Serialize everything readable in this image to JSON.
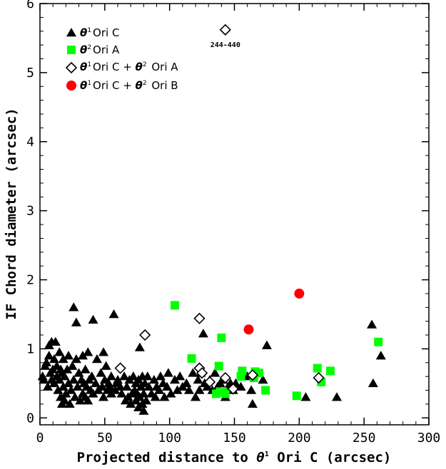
{
  "chart_data": {
    "type": "scatter",
    "xlabel_pre": "Projected distance to ",
    "xlabel_theta": "θ",
    "xlabel_sup": "1",
    "xlabel_post": " Ori C (arcsec)",
    "ylabel": "IF Chord diameter (arcsec)",
    "xlim": [
      0,
      300
    ],
    "ylim": [
      -0.1,
      6
    ],
    "xticks": [
      "0",
      "50",
      "100",
      "150",
      "200",
      "250",
      "300"
    ],
    "yticks": [
      "0",
      "1",
      "2",
      "3",
      "4",
      "5",
      "6"
    ],
    "grid": false,
    "legend_position": "top-left",
    "annotation": {
      "text": "244-440",
      "x": 143,
      "y": 5.62
    },
    "series": [
      {
        "name": "Ori C",
        "name_theta": "θ",
        "name_sup": "1",
        "marker": "triangle",
        "color": "#000000",
        "points": [
          [
            2,
            0.6
          ],
          [
            3,
            0.55
          ],
          [
            4,
            0.75
          ],
          [
            5,
            0.8
          ],
          [
            6,
            0.45
          ],
          [
            7,
            0.9
          ],
          [
            7,
            1.05
          ],
          [
            8,
            0.65
          ],
          [
            9,
            0.55
          ],
          [
            9,
            1.1
          ],
          [
            10,
            0.7
          ],
          [
            11,
            0.5
          ],
          [
            11,
            0.85
          ],
          [
            12,
            1.1
          ],
          [
            13,
            0.6
          ],
          [
            13,
            0.75
          ],
          [
            14,
            0.4
          ],
          [
            15,
            0.95
          ],
          [
            15,
            0.55
          ],
          [
            16,
            0.3
          ],
          [
            16,
            0.7
          ],
          [
            17,
            0.2
          ],
          [
            17,
            0.65
          ],
          [
            18,
            0.45
          ],
          [
            18,
            0.85
          ],
          [
            19,
            0.25
          ],
          [
            19,
            0.6
          ],
          [
            20,
            0.35
          ],
          [
            21,
            0.7
          ],
          [
            22,
            0.5
          ],
          [
            22,
            0.9
          ],
          [
            23,
            0.2
          ],
          [
            24,
            0.4
          ],
          [
            25,
            0.75
          ],
          [
            26,
            1.6
          ],
          [
            26,
            0.55
          ],
          [
            27,
            0.3
          ],
          [
            28,
            1.38
          ],
          [
            28,
            0.85
          ],
          [
            29,
            0.45
          ],
          [
            30,
            0.65
          ],
          [
            31,
            0.25
          ],
          [
            32,
            0.55
          ],
          [
            33,
            0.9
          ],
          [
            33,
            0.35
          ],
          [
            34,
            0.5
          ],
          [
            35,
            0.7
          ],
          [
            35,
            0.3
          ],
          [
            36,
            0.45
          ],
          [
            37,
            0.95
          ],
          [
            37,
            0.25
          ],
          [
            38,
            0.55
          ],
          [
            39,
            0.4
          ],
          [
            40,
            0.6
          ],
          [
            41,
            0.35
          ],
          [
            41,
            1.42
          ],
          [
            43,
            0.5
          ],
          [
            44,
            0.85
          ],
          [
            45,
            0.4
          ],
          [
            47,
            0.65
          ],
          [
            48,
            0.45
          ],
          [
            49,
            0.95
          ],
          [
            49,
            0.3
          ],
          [
            50,
            0.55
          ],
          [
            51,
            0.75
          ],
          [
            52,
            0.4
          ],
          [
            53,
            0.5
          ],
          [
            54,
            0.45
          ],
          [
            55,
            0.6
          ],
          [
            55,
            0.35
          ],
          [
            57,
            1.5
          ],
          [
            58,
            0.4
          ],
          [
            59,
            0.5
          ],
          [
            60,
            0.55
          ],
          [
            62,
            0.45
          ],
          [
            63,
            0.35
          ],
          [
            65,
            0.6
          ],
          [
            66,
            0.25
          ],
          [
            67,
            0.45
          ],
          [
            68,
            0.3
          ],
          [
            69,
            0.55
          ],
          [
            70,
            0.2
          ],
          [
            71,
            0.35
          ],
          [
            72,
            0.6
          ],
          [
            73,
            0.4
          ],
          [
            74,
            0.25
          ],
          [
            74,
            0.5
          ],
          [
            75,
            0.35
          ],
          [
            76,
            0.15
          ],
          [
            76,
            0.55
          ],
          [
            77,
            1.02
          ],
          [
            77,
            0.3
          ],
          [
            78,
            0.45
          ],
          [
            79,
            0.2
          ],
          [
            79,
            0.6
          ],
          [
            80,
            0.1
          ],
          [
            80,
            0.35
          ],
          [
            81,
            0.5
          ],
          [
            82,
            0.25
          ],
          [
            83,
            0.6
          ],
          [
            84,
            0.45
          ],
          [
            86,
            0.35
          ],
          [
            88,
            0.55
          ],
          [
            89,
            0.3
          ],
          [
            90,
            0.45
          ],
          [
            92,
            0.4
          ],
          [
            93,
            0.6
          ],
          [
            95,
            0.5
          ],
          [
            96,
            0.3
          ],
          [
            98,
            0.45
          ],
          [
            99,
            0.65
          ],
          [
            101,
            0.35
          ],
          [
            104,
            0.55
          ],
          [
            106,
            0.4
          ],
          [
            108,
            0.6
          ],
          [
            110,
            0.45
          ],
          [
            113,
            0.5
          ],
          [
            115,
            0.4
          ],
          [
            118,
            0.65
          ],
          [
            120,
            0.3
          ],
          [
            122,
            0.55
          ],
          [
            123,
            0.4
          ],
          [
            124,
            0.65
          ],
          [
            126,
            1.22
          ],
          [
            127,
            0.5
          ],
          [
            129,
            0.45
          ],
          [
            131,
            0.55
          ],
          [
            133,
            0.4
          ],
          [
            135,
            0.65
          ],
          [
            137,
            0.45
          ],
          [
            139,
            0.5
          ],
          [
            141,
            0.55
          ],
          [
            143,
            0.3
          ],
          [
            145,
            0.45
          ],
          [
            147,
            0.5
          ],
          [
            149,
            0.4
          ],
          [
            151,
            0.5
          ],
          [
            155,
            0.45
          ],
          [
            160,
            0.6
          ],
          [
            163,
            0.4
          ],
          [
            164,
            0.2
          ],
          [
            167,
            0.65
          ],
          [
            172,
            0.55
          ],
          [
            175,
            1.05
          ],
          [
            205,
            0.3
          ],
          [
            229,
            0.3
          ],
          [
            256,
            1.35
          ],
          [
            257,
            0.5
          ],
          [
            263,
            0.9
          ]
        ]
      },
      {
        "name": "Ori A",
        "name_theta": "θ",
        "name_sup": "2",
        "marker": "square",
        "color": "#00ff00",
        "points": [
          [
            104,
            1.63
          ],
          [
            117,
            0.86
          ],
          [
            138,
            0.75
          ],
          [
            140,
            1.16
          ],
          [
            136,
            0.35
          ],
          [
            139,
            0.38
          ],
          [
            141,
            0.38
          ],
          [
            143,
            0.35
          ],
          [
            155,
            0.6
          ],
          [
            156,
            0.68
          ],
          [
            165,
            0.58
          ],
          [
            166,
            0.67
          ],
          [
            169,
            0.65
          ],
          [
            174,
            0.4
          ],
          [
            198,
            0.32
          ],
          [
            214,
            0.72
          ],
          [
            217,
            0.52
          ],
          [
            224,
            0.68
          ],
          [
            261,
            1.1
          ]
        ]
      },
      {
        "name": "Ori C + ",
        "name_theta": "θ",
        "name_sup": "1",
        "name2_theta": "θ",
        "name2_sup": "2",
        "name2": " Ori A",
        "marker": "diamond",
        "color": "#000000",
        "points": [
          [
            62,
            0.72
          ],
          [
            81,
            1.2
          ],
          [
            123,
            1.44
          ],
          [
            123,
            0.72
          ],
          [
            125,
            0.65
          ],
          [
            131,
            0.52
          ],
          [
            143,
            0.58
          ],
          [
            149,
            0.42
          ],
          [
            164,
            0.62
          ],
          [
            215,
            0.58
          ],
          [
            143,
            5.62
          ]
        ]
      },
      {
        "name": "Ori C + ",
        "name_theta": "θ",
        "name_sup": "1",
        "name2_theta": "θ",
        "name2_sup": "2",
        "name2": " Ori B",
        "marker": "circle",
        "color": "#ff0000",
        "points": [
          [
            161,
            1.28
          ],
          [
            200,
            1.8
          ]
        ]
      }
    ]
  }
}
